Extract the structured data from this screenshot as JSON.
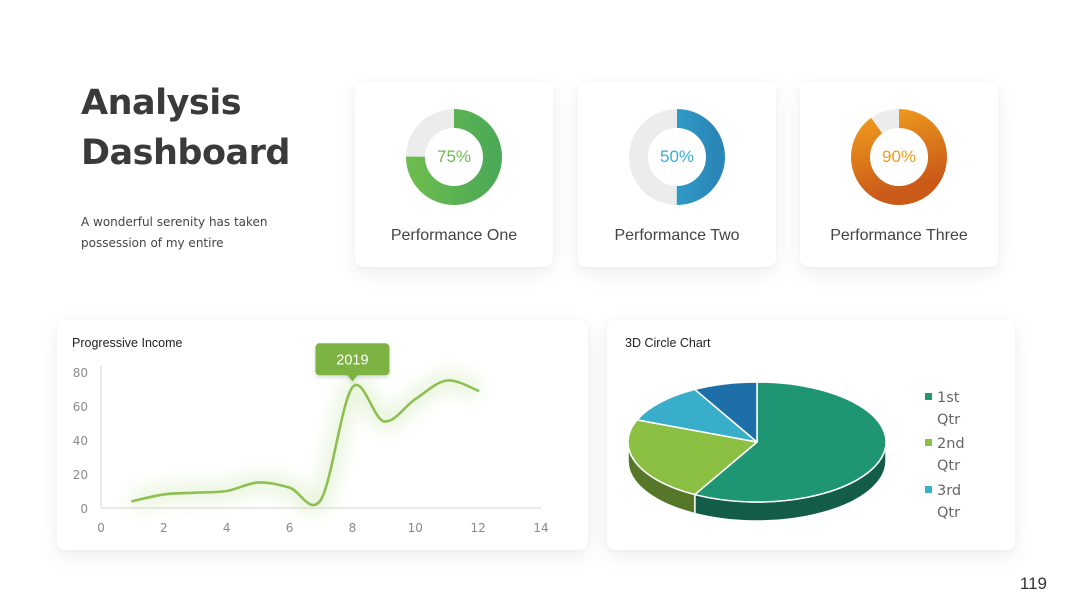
{
  "header": {
    "title_line1": "Analysis",
    "title_line2": "Dashboard",
    "subtitle": "A wonderful serenity has taken possession of my entire"
  },
  "performance": [
    {
      "label": "Performance One",
      "value_text": "75%",
      "percent": 75,
      "color": "#6cbb4f",
      "color_dark": "#4caa56"
    },
    {
      "label": "Performance Two",
      "value_text": "50%",
      "percent": 50,
      "color": "#36aed6",
      "color_dark": "#2a86b8"
    },
    {
      "label": "Performance Three",
      "value_text": "90%",
      "percent": 90,
      "color": "#ef9a1e",
      "color_dark": "#c95a18"
    }
  ],
  "colors": {
    "track": "#ececec",
    "line": "#8cc152",
    "callout": "#7cb342",
    "axis_text": "#8a8a8a"
  },
  "page_number": "119",
  "chart_data": [
    {
      "type": "line",
      "title": "Progressive Income",
      "xlim": [
        0,
        14
      ],
      "ylim": [
        0,
        80
      ],
      "xticks": [
        0,
        2,
        4,
        6,
        8,
        10,
        12,
        14
      ],
      "yticks": [
        0,
        20,
        40,
        60,
        80
      ],
      "series": [
        {
          "x": [
            1,
            2,
            3,
            4,
            5,
            6,
            7,
            8,
            9,
            10,
            11,
            12
          ],
          "y": [
            4,
            8,
            9,
            10,
            15,
            12,
            5,
            71,
            51,
            64,
            75,
            69
          ]
        }
      ],
      "annotation": {
        "text": "2019",
        "x": 8,
        "y": 71
      },
      "grid": false
    },
    {
      "type": "pie",
      "title": "3D Circle Chart",
      "series": [
        {
          "name": "1st Qtr",
          "value": 58,
          "color": "#1e9573"
        },
        {
          "name": "2nd Qtr",
          "value": 23,
          "color": "#8bc043"
        },
        {
          "name": "3rd Qtr",
          "value": 11,
          "color": "#39aecb"
        },
        {
          "name": "",
          "value": 8,
          "color": "#1e6ea8"
        }
      ],
      "legend_labels": [
        "1st",
        "Qtr",
        "2nd",
        "Qtr",
        "3rd",
        "Qtr"
      ],
      "legend_position": "right"
    }
  ]
}
